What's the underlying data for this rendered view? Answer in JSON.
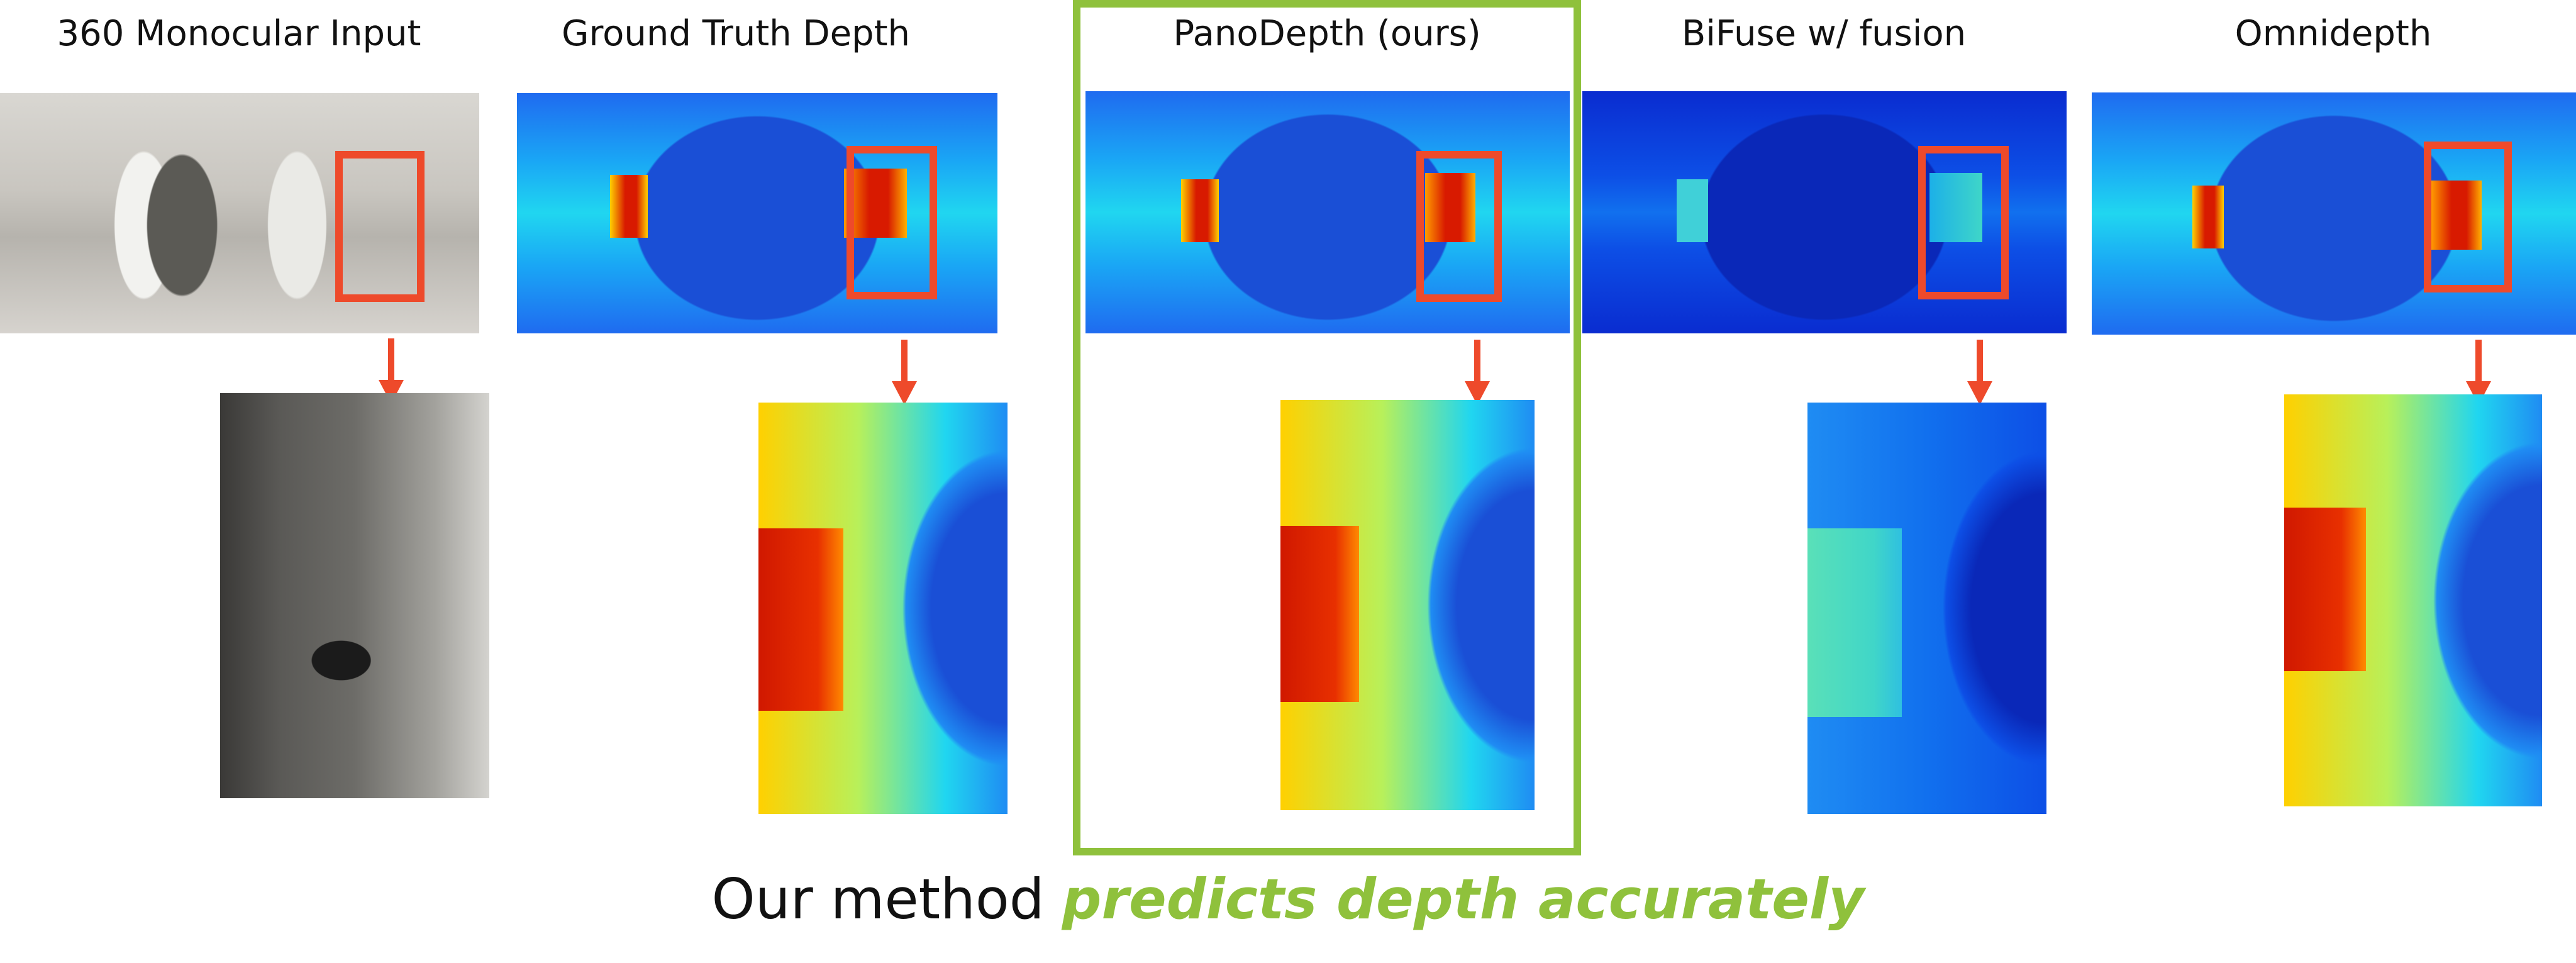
{
  "columns": [
    {
      "title": "360 Monocular Input"
    },
    {
      "title": "Ground Truth Depth"
    },
    {
      "title": "PanoDepth (ours)"
    },
    {
      "title": "BiFuse w/ fusion"
    },
    {
      "title": "Omnidepth"
    }
  ],
  "caption": {
    "prefix": "Our method ",
    "emphasis": "predicts depth accurately"
  },
  "colors": {
    "annotation_red": "#ee4a2b",
    "highlight_green": "#8fc13c"
  }
}
